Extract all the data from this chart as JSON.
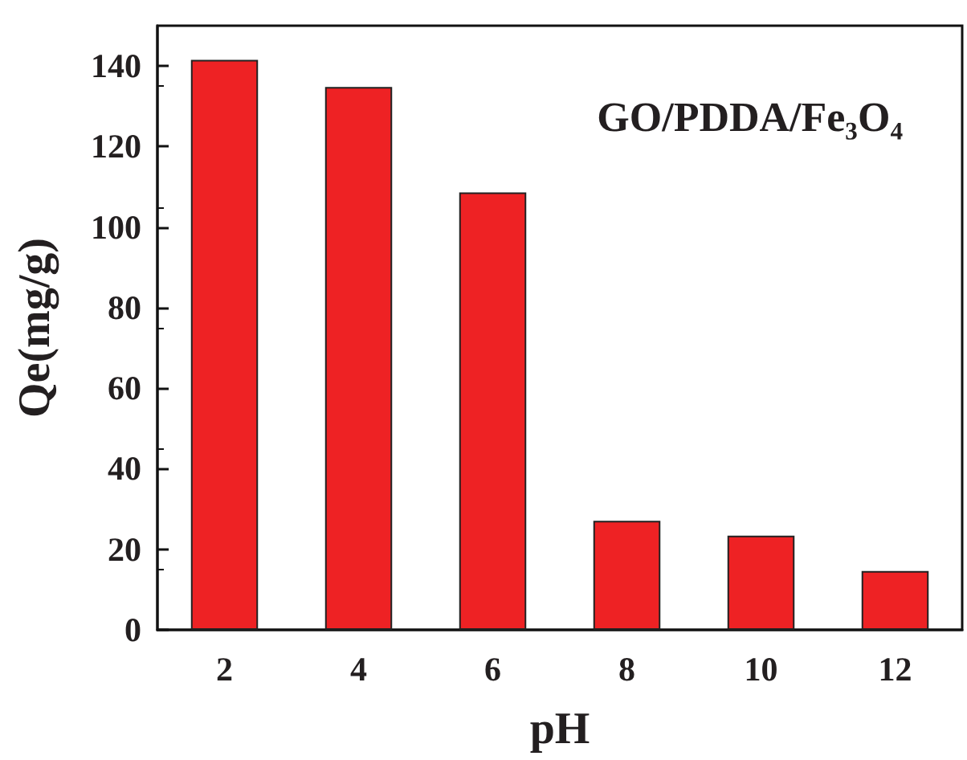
{
  "chart_data": {
    "type": "bar",
    "xlabel": "pH",
    "ylabel": "Qe(mg/g)",
    "annotations": [
      "GO/PDDA/Fe₃O₄"
    ],
    "categories": [
      "2",
      "4",
      "6",
      "8",
      "10",
      "12"
    ],
    "values": [
      141.5,
      134.8,
      108.6,
      27.1,
      23.4,
      14.6
    ],
    "color": "#ee2224",
    "ylim": [
      0,
      150
    ],
    "yticks": [
      0,
      20,
      40,
      60,
      80,
      100,
      120,
      140
    ],
    "grid": false
  }
}
